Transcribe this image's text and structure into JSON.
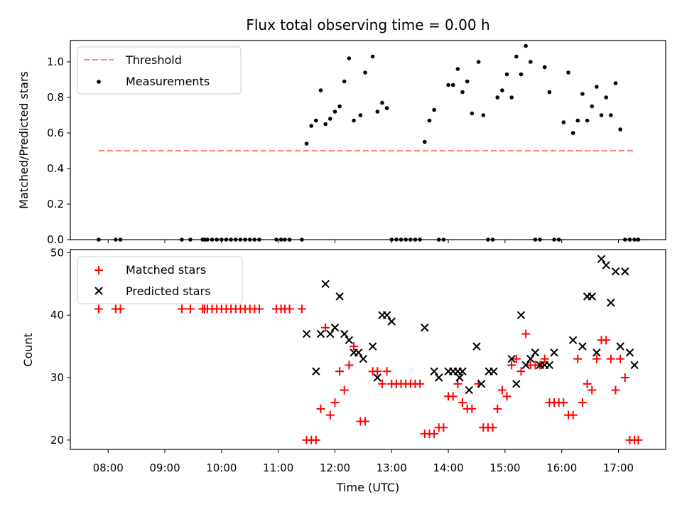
{
  "chart_data": [
    {
      "type": "scatter",
      "title": "Flux total observing time = 0.00 h",
      "xlabel": "",
      "ylabel": "Matched/Predicted stars",
      "ylim": [
        0,
        1.12
      ],
      "yticks": [
        "0.0",
        "0.2",
        "0.4",
        "0.6",
        "0.8",
        "1.0"
      ],
      "legend_position": "top-left",
      "threshold": {
        "name": "Threshold",
        "value": 0.5,
        "color": "#ff7f7f",
        "style": "dashed",
        "x_start": "07:50",
        "x_end": "17:16"
      },
      "series": [
        {
          "name": "Measurements",
          "color": "#000000",
          "marker": "dot",
          "x": [
            "07:50",
            "08:08",
            "08:13",
            "09:18",
            "09:27",
            "09:40",
            "09:42",
            "09:45",
            "09:50",
            "09:55",
            "10:00",
            "10:05",
            "10:10",
            "10:15",
            "10:20",
            "10:25",
            "10:30",
            "10:35",
            "10:40",
            "10:58",
            "11:03",
            "11:07",
            "11:12",
            "11:25",
            "11:30",
            "11:35",
            "11:40",
            "11:45",
            "11:50",
            "11:55",
            "12:00",
            "12:05",
            "12:10",
            "12:15",
            "12:20",
            "12:27",
            "12:32",
            "12:40",
            "12:45",
            "12:50",
            "12:55",
            "13:00",
            "13:05",
            "13:10",
            "13:15",
            "13:20",
            "13:25",
            "13:30",
            "13:35",
            "13:40",
            "13:45",
            "13:50",
            "13:55",
            "14:00",
            "14:05",
            "14:10",
            "14:15",
            "14:20",
            "14:25",
            "14:32",
            "14:37",
            "14:42",
            "14:47",
            "14:52",
            "14:57",
            "15:02",
            "15:07",
            "15:12",
            "15:17",
            "15:22",
            "15:27",
            "15:32",
            "15:37",
            "15:42",
            "15:47",
            "15:52",
            "15:57",
            "16:02",
            "16:07",
            "16:12",
            "16:17",
            "16:22",
            "16:27",
            "16:32",
            "16:37",
            "16:42",
            "16:47",
            "16:52",
            "16:57",
            "17:02",
            "17:07",
            "17:12",
            "17:17",
            "17:21"
          ],
          "y": [
            0,
            0,
            0,
            0,
            0,
            0,
            0,
            0,
            0,
            0,
            0,
            0,
            0,
            0,
            0,
            0,
            0,
            0,
            0,
            0,
            0,
            0,
            0,
            0,
            0.54,
            0.64,
            0.67,
            0.84,
            0.65,
            0.68,
            0.72,
            0.75,
            0.89,
            1.02,
            0.67,
            0.7,
            0.94,
            1.03,
            0.72,
            0.77,
            0.74,
            0,
            0,
            0,
            0,
            0,
            0,
            0,
            0.55,
            0.67,
            0.73,
            0,
            0,
            0.87,
            0.87,
            0.96,
            0.83,
            0.89,
            0.71,
            1.0,
            0.7,
            0,
            0,
            0.8,
            0.84,
            0.93,
            0.8,
            1.03,
            0.93,
            1.09,
            1.0,
            0,
            0,
            0.97,
            0.83,
            0,
            0,
            0.66,
            0.94,
            0.6,
            0.67,
            0.82,
            0.67,
            0.75,
            0.86,
            0.7,
            0.8,
            0.7,
            0.88,
            0.62,
            0,
            0,
            0,
            0
          ]
        }
      ]
    },
    {
      "type": "scatter",
      "title": "",
      "xlabel": "Time (UTC)",
      "ylabel": "Count",
      "ylim": [
        18.5,
        50.5
      ],
      "yticks": [
        "20",
        "30",
        "40",
        "50"
      ],
      "xticks": [
        "08:00",
        "09:00",
        "10:00",
        "11:00",
        "12:00",
        "13:00",
        "14:00",
        "15:00",
        "16:00",
        "17:00"
      ],
      "legend_position": "top-left",
      "series": [
        {
          "name": "Matched stars",
          "color": "#ff0000",
          "marker": "plus",
          "x": [
            "07:50",
            "08:08",
            "08:13",
            "09:18",
            "09:27",
            "09:40",
            "09:42",
            "09:45",
            "09:50",
            "09:55",
            "10:00",
            "10:05",
            "10:10",
            "10:15",
            "10:20",
            "10:25",
            "10:30",
            "10:35",
            "10:40",
            "10:58",
            "11:03",
            "11:07",
            "11:12",
            "11:25",
            "11:30",
            "11:35",
            "11:40",
            "11:45",
            "11:50",
            "11:55",
            "12:00",
            "12:05",
            "12:10",
            "12:15",
            "12:20",
            "12:27",
            "12:32",
            "12:40",
            "12:45",
            "12:50",
            "12:55",
            "13:00",
            "13:05",
            "13:10",
            "13:15",
            "13:20",
            "13:25",
            "13:30",
            "13:35",
            "13:40",
            "13:45",
            "13:50",
            "13:55",
            "14:00",
            "14:05",
            "14:10",
            "14:15",
            "14:20",
            "14:25",
            "14:32",
            "14:37",
            "14:42",
            "14:47",
            "14:52",
            "14:57",
            "15:02",
            "15:07",
            "15:12",
            "15:17",
            "15:22",
            "15:27",
            "15:32",
            "15:37",
            "15:42",
            "15:47",
            "15:52",
            "15:57",
            "16:02",
            "16:07",
            "16:12",
            "16:17",
            "16:22",
            "16:27",
            "16:32",
            "16:37",
            "16:42",
            "16:47",
            "16:52",
            "16:57",
            "17:02",
            "17:07",
            "17:12",
            "17:17",
            "17:21"
          ],
          "y": [
            41,
            41,
            41,
            41,
            41,
            41,
            41,
            41,
            41,
            41,
            41,
            41,
            41,
            41,
            41,
            41,
            41,
            41,
            41,
            41,
            41,
            41,
            41,
            41,
            20,
            20,
            20,
            25,
            38,
            24,
            26,
            31,
            28,
            32,
            35,
            23,
            23,
            31,
            31,
            29,
            31,
            29,
            29,
            29,
            29,
            29,
            29,
            29,
            21,
            21,
            21,
            22,
            22,
            27,
            27,
            29,
            26,
            25,
            25,
            29,
            22,
            22,
            22,
            25,
            28,
            27,
            32,
            33,
            31,
            37,
            32,
            32,
            32,
            33,
            26,
            26,
            26,
            26,
            24,
            24,
            33,
            26,
            29,
            28,
            33,
            36,
            36,
            33,
            28,
            33,
            30,
            20,
            20,
            20
          ]
        },
        {
          "name": "Predicted stars",
          "color": "#000000",
          "marker": "x",
          "x": [
            "11:30",
            "11:40",
            "11:45",
            "11:50",
            "11:55",
            "12:00",
            "12:05",
            "12:10",
            "12:15",
            "12:20",
            "12:25",
            "12:30",
            "12:40",
            "12:45",
            "12:50",
            "12:55",
            "13:00",
            "13:35",
            "13:45",
            "13:50",
            "14:00",
            "14:05",
            "14:10",
            "14:12",
            "14:15",
            "14:22",
            "14:30",
            "14:35",
            "14:43",
            "14:48",
            "15:07",
            "15:12",
            "15:17",
            "15:22",
            "15:27",
            "15:32",
            "15:37",
            "15:42",
            "15:47",
            "15:52",
            "16:12",
            "16:22",
            "16:27",
            "16:32",
            "16:37",
            "16:42",
            "16:47",
            "16:52",
            "16:57",
            "17:02",
            "17:07",
            "17:12",
            "17:17"
          ],
          "y": [
            37,
            31,
            37,
            45,
            37,
            38,
            43,
            37,
            36,
            34,
            34,
            33,
            35,
            30,
            40,
            40,
            39,
            38,
            31,
            30,
            31,
            31,
            31,
            30,
            31,
            28,
            35,
            29,
            31,
            31,
            33,
            29,
            40,
            32,
            33,
            34,
            32,
            32,
            32,
            34,
            36,
            35,
            43,
            43,
            34,
            49,
            48,
            42,
            47,
            35,
            47,
            34,
            32
          ]
        }
      ]
    }
  ]
}
